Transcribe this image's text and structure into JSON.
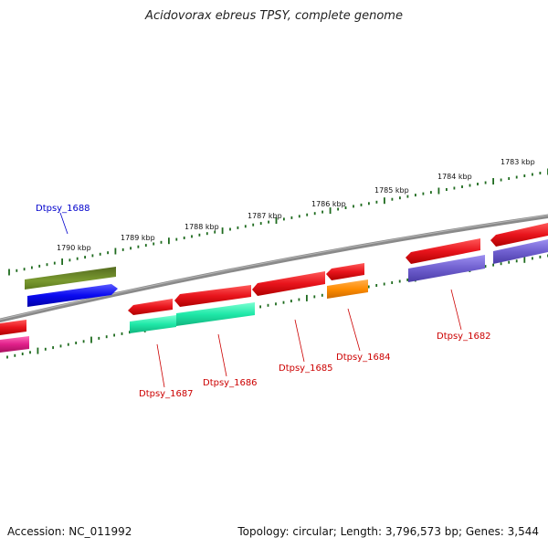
{
  "title": "Acidovorax ebreus TPSY, complete genome",
  "footer": {
    "accession": "Accession: NC_011992",
    "summary": "Topology: circular; Length: 3,796,573 bp; Genes: 3,544"
  },
  "scale": {
    "unit": "kbp",
    "labels": [
      "1790 kbp",
      "1789 kbp",
      "1788 kbp",
      "1787 kbp",
      "1786 kbp",
      "1785 kbp",
      "1784 kbp",
      "1783 kbp"
    ]
  },
  "genes": [
    {
      "label": "Dtpsy_1688",
      "color": "#0000cc"
    },
    {
      "label": "Dtpsy_1687",
      "color": "#cc0000"
    },
    {
      "label": "Dtpsy_1686",
      "color": "#cc0000"
    },
    {
      "label": "Dtpsy_1685",
      "color": "#cc0000"
    },
    {
      "label": "Dtpsy_1684",
      "color": "#cc0000"
    },
    {
      "label": "Dtpsy_1682",
      "color": "#cc0000"
    }
  ],
  "colors": {
    "backbone": "#7a7a7a",
    "ticks": "#1f6b1f",
    "cds_red": "#e8141c",
    "blue": "#1010ee",
    "olive": "#6b8e23",
    "aquamarine": "#1fe8a8",
    "orange": "#ff8c00",
    "purple": "#6f5fcf",
    "magenta": "#e0208a"
  }
}
